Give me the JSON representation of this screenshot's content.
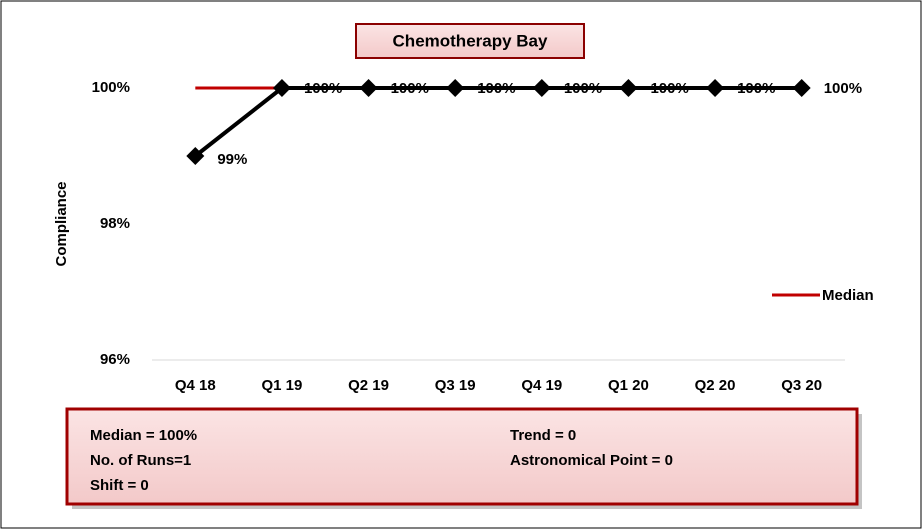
{
  "chart_data": {
    "type": "line",
    "title": "Chemotherapy Bay",
    "y_label": "Compliance",
    "categories": [
      "Q4 18",
      "Q1 19",
      "Q2 19",
      "Q3 19",
      "Q4 19",
      "Q1 20",
      "Q2 20",
      "Q3 20"
    ],
    "series": [
      {
        "color": "#000000",
        "marker": "diamond",
        "values": [
          99,
          100,
          100,
          100,
          100,
          100,
          100,
          100
        ],
        "value_labels": [
          "99%",
          "100%",
          "100%",
          "100%",
          "100%",
          "100%",
          "100%",
          "100%"
        ]
      },
      {
        "name": "Median",
        "color": "#c00000",
        "values": [
          100,
          100,
          100,
          100,
          100,
          100,
          100,
          100
        ]
      }
    ],
    "ylim": [
      96,
      101
    ],
    "yticks": [
      {
        "value": 96,
        "label": "96%"
      },
      {
        "value": 98,
        "label": "98%"
      },
      {
        "value": 100,
        "label": "100%"
      }
    ],
    "legend": "right",
    "annotations": [
      "Median = 100%",
      "No. of Runs=1",
      "Shift = 0",
      "Trend = 0",
      "Astronomical Point = 0"
    ]
  }
}
